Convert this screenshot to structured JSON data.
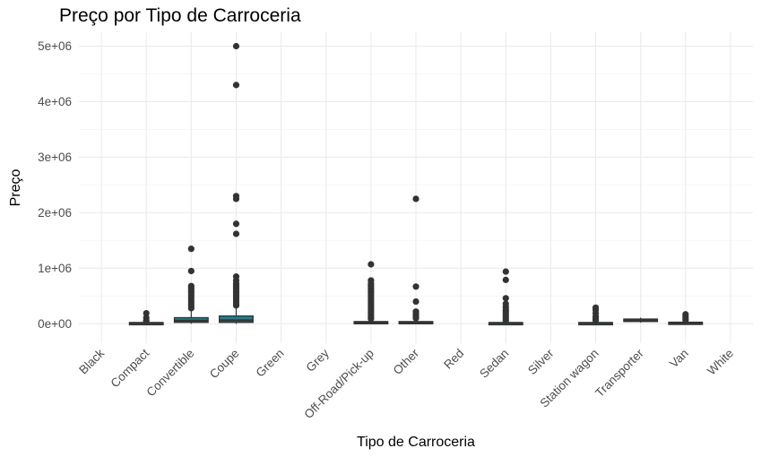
{
  "chart_data": {
    "type": "boxplot",
    "title": "Preço por Tipo de Carroceria",
    "xlabel": "Tipo de Carroceria",
    "ylabel": "Preço",
    "ylim": [
      -350000,
      5250000
    ],
    "yticks": [
      0,
      1000000,
      2000000,
      3000000,
      4000000,
      5000000
    ],
    "ytick_labels": [
      "0e+00",
      "1e+06",
      "2e+06",
      "3e+06",
      "4e+06",
      "5e+06"
    ],
    "grid": true,
    "box_fill_color": "#1f7f8c",
    "outline_color": "#333333",
    "categories": [
      "Black",
      "Compact",
      "Convertible",
      "Coupe",
      "Green",
      "Grey",
      "Off-Road/Pick-up",
      "Other",
      "Red",
      "Sedan",
      "Silver",
      "Station wagon",
      "Transporter",
      "Van",
      "White"
    ],
    "boxes": [
      null,
      {
        "q1": 5000,
        "median": 12000,
        "q3": 22000,
        "whisker_low": 0,
        "whisker_high": 40000,
        "outliers": [
          190000,
          110000,
          60000,
          45000
        ]
      },
      {
        "q1": 25000,
        "median": 55000,
        "q3": 110000,
        "whisker_low": 0,
        "whisker_high": 240000,
        "outliers": [
          1350000,
          950000,
          680000,
          640000,
          600000,
          560000,
          520000,
          480000,
          440000,
          400000,
          360000,
          320000,
          280000
        ]
      },
      {
        "q1": 25000,
        "median": 60000,
        "q3": 140000,
        "whisker_low": 0,
        "whisker_high": 300000,
        "outliers": [
          5000000,
          4300000,
          2300000,
          2250000,
          1800000,
          1620000,
          850000,
          780000,
          720000,
          680000,
          640000,
          600000,
          560000,
          520000,
          480000,
          440000,
          400000,
          360000,
          330000
        ]
      },
      null,
      null,
      {
        "q1": 8000,
        "median": 20000,
        "q3": 40000,
        "whisker_low": 0,
        "whisker_high": 75000,
        "outliers": [
          1070000,
          780000,
          720000,
          680000,
          640000,
          600000,
          560000,
          520000,
          480000,
          440000,
          400000,
          360000,
          320000,
          280000,
          240000,
          200000,
          160000,
          120000,
          90000
        ]
      },
      {
        "q1": 10000,
        "median": 20000,
        "q3": 40000,
        "whisker_low": 0,
        "whisker_high": 75000,
        "outliers": [
          2250000,
          670000,
          400000,
          220000,
          180000,
          140000,
          100000
        ]
      },
      null,
      {
        "q1": 5000,
        "median": 12000,
        "q3": 22000,
        "whisker_low": 0,
        "whisker_high": 45000,
        "outliers": [
          940000,
          790000,
          460000,
          360000,
          300000,
          250000,
          210000,
          170000,
          130000,
          90000,
          60000
        ]
      },
      null,
      {
        "q1": 6000,
        "median": 12000,
        "q3": 22000,
        "whisker_low": 0,
        "whisker_high": 45000,
        "outliers": [
          290000,
          250000,
          190000,
          130000,
          90000,
          60000
        ]
      },
      {
        "q1": 40000,
        "median": 65000,
        "q3": 85000,
        "whisker_low": 20000,
        "whisker_high": 110000,
        "outliers": []
      },
      {
        "q1": 6000,
        "median": 15000,
        "q3": 28000,
        "whisker_low": 0,
        "whisker_high": 50000,
        "outliers": [
          170000,
          130000,
          95000,
          65000
        ]
      },
      null
    ]
  }
}
